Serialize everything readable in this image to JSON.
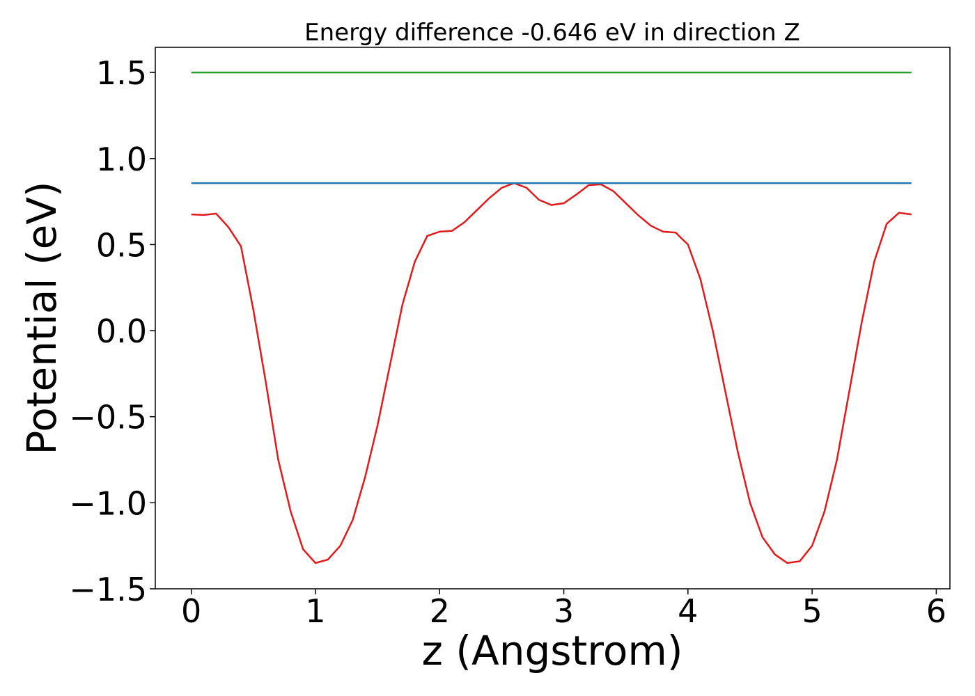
{
  "chart_data": {
    "type": "line",
    "title": "Energy difference -0.646 eV in direction Z",
    "x_label": "z (Angstrom)",
    "y_label": "Potential (eV)",
    "xlim": [
      -0.29,
      6.11
    ],
    "ylim": [
      -1.5,
      1.646
    ],
    "xticks": [
      0,
      1,
      2,
      3,
      4,
      5,
      6
    ],
    "yticks": [
      {
        "value": -1.5,
        "label": "−1.5"
      },
      {
        "value": -1,
        "label": "−1.0"
      },
      {
        "value": -0.5,
        "label": "−0.5"
      },
      {
        "value": 0,
        "label": "0.0"
      },
      0.5,
      {
        "value": 1,
        "label": "1.0"
      },
      1.5
    ],
    "grid": false,
    "series": [
      {
        "color": "#e31a1c",
        "x": [
          0,
          0.1,
          0.2,
          0.3,
          0.4,
          0.5,
          0.6,
          0.7,
          0.8,
          0.9,
          1.0,
          1.1,
          1.2,
          1.3,
          1.4,
          1.5,
          1.6,
          1.7,
          1.8,
          1.9,
          2.0,
          2.1,
          2.2,
          2.3,
          2.4,
          2.5,
          2.6,
          2.7,
          2.8,
          2.9,
          3.0,
          3.1,
          3.2,
          3.3,
          3.4,
          3.5,
          3.6,
          3.7,
          3.8,
          3.9,
          4.0,
          4.1,
          4.2,
          4.3,
          4.4,
          4.5,
          4.6,
          4.7,
          4.8,
          4.9,
          5.0,
          5.1,
          5.2,
          5.3,
          5.4,
          5.5,
          5.6,
          5.7,
          5.8
        ],
        "values": [
          0.675,
          0.672,
          0.68,
          0.6,
          0.49,
          0.12,
          -0.3,
          -0.75,
          -1.05,
          -1.27,
          -1.35,
          -1.33,
          -1.25,
          -1.1,
          -0.85,
          -0.55,
          -0.2,
          0.15,
          0.4,
          0.55,
          0.575,
          0.58,
          0.63,
          0.7,
          0.77,
          0.83,
          0.857,
          0.83,
          0.76,
          0.73,
          0.74,
          0.79,
          0.845,
          0.85,
          0.81,
          0.74,
          0.67,
          0.61,
          0.575,
          0.57,
          0.5,
          0.3,
          0.0,
          -0.35,
          -0.7,
          -1.0,
          -1.2,
          -1.3,
          -1.35,
          -1.34,
          -1.25,
          -1.05,
          -0.75,
          -0.35,
          0.05,
          0.4,
          0.62,
          0.685,
          0.675
        ]
      },
      {
        "color": "#1f77b4",
        "x": [
          0,
          5.8
        ],
        "values": [
          0.857,
          0.857
        ]
      },
      {
        "color": "#2ca02c",
        "x": [
          0,
          5.8
        ],
        "values": [
          1.5,
          1.5
        ]
      }
    ]
  }
}
